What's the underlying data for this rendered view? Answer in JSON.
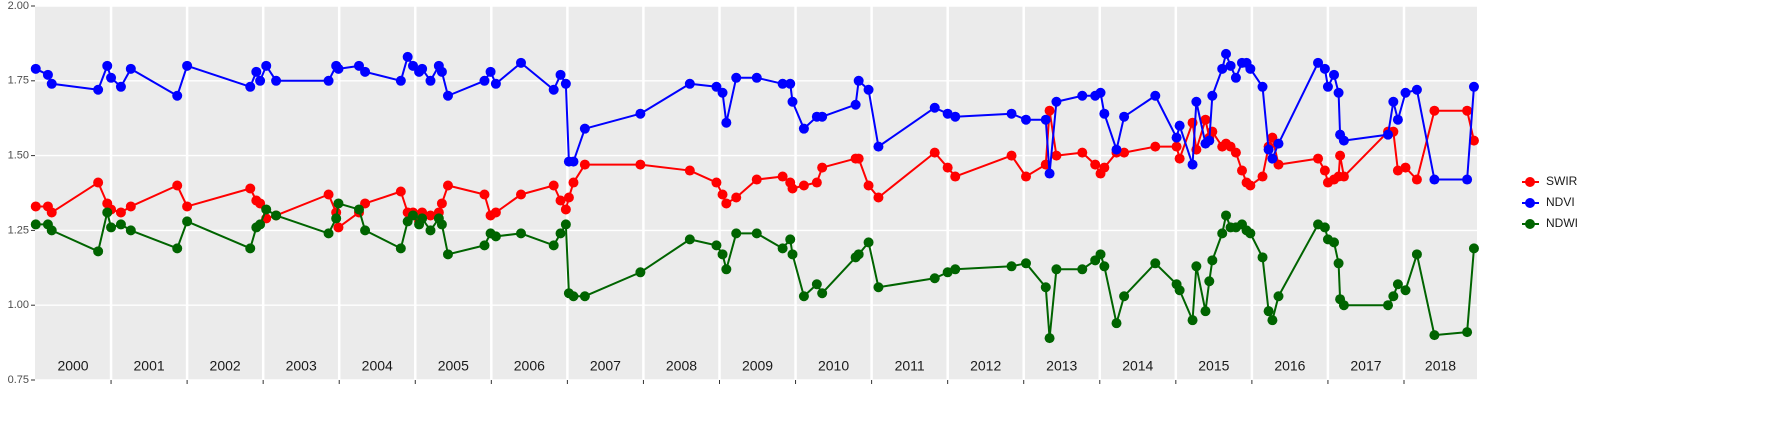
{
  "chart_data": {
    "type": "line",
    "x": [
      2000.01,
      2000.17,
      2000.22,
      2000.83,
      2000.95,
      2001.0,
      2001.13,
      2001.26,
      2001.87,
      2002.0,
      2002.83,
      2002.91,
      2002.96,
      2003.04,
      2003.17,
      2003.86,
      2003.96,
      2003.99,
      2004.26,
      2004.34,
      2004.81,
      2004.9,
      2004.97,
      2005.05,
      2005.09,
      2005.2,
      2005.31,
      2005.35,
      2005.43,
      2005.91,
      2005.99,
      2006.06,
      2006.39,
      2006.82,
      2006.91,
      2006.98,
      2007.02,
      2007.08,
      2007.23,
      2007.96,
      2008.61,
      2008.96,
      2009.04,
      2009.09,
      2009.22,
      2009.49,
      2009.83,
      2009.93,
      2009.96,
      2010.11,
      2010.28,
      2010.35,
      2010.79,
      2010.83,
      2010.96,
      2011.09,
      2011.83,
      2012.0,
      2012.1,
      2012.84,
      2013.03,
      2013.29,
      2013.34,
      2013.43,
      2013.77,
      2013.94,
      2014.01,
      2014.06,
      2014.22,
      2014.32,
      2014.73,
      2015.01,
      2015.05,
      2015.22,
      2015.27,
      2015.39,
      2015.44,
      2015.48,
      2015.61,
      2015.66,
      2015.72,
      2015.79,
      2015.87,
      2015.93,
      2015.98,
      2016.14,
      2016.22,
      2016.27,
      2016.35,
      2016.87,
      2016.96,
      2017.0,
      2017.08,
      2017.14,
      2017.16,
      2017.21,
      2017.79,
      2017.86,
      2017.92,
      2018.02,
      2018.17,
      2018.4,
      2018.83,
      2018.92
    ],
    "series": [
      {
        "name": "SWIR",
        "color": "#ff0000",
        "values": [
          1.33,
          1.33,
          1.31,
          1.41,
          1.34,
          1.32,
          1.31,
          1.33,
          1.4,
          1.33,
          1.39,
          1.35,
          1.34,
          1.29,
          1.3,
          1.37,
          1.31,
          1.26,
          1.31,
          1.34,
          1.38,
          1.31,
          1.31,
          1.28,
          1.31,
          1.3,
          1.31,
          1.34,
          1.4,
          1.37,
          1.3,
          1.31,
          1.37,
          1.4,
          1.35,
          1.32,
          1.36,
          1.41,
          1.47,
          1.47,
          1.45,
          1.41,
          1.37,
          1.34,
          1.36,
          1.42,
          1.43,
          1.41,
          1.39,
          1.4,
          1.41,
          1.46,
          1.49,
          1.49,
          1.4,
          1.36,
          1.51,
          1.46,
          1.43,
          1.5,
          1.43,
          1.47,
          1.65,
          1.5,
          1.51,
          1.47,
          1.44,
          1.46,
          1.51,
          1.51,
          1.53,
          1.53,
          1.49,
          1.61,
          1.52,
          1.62,
          1.56,
          1.58,
          1.53,
          1.54,
          1.53,
          1.51,
          1.45,
          1.41,
          1.4,
          1.43,
          1.53,
          1.56,
          1.47,
          1.49,
          1.45,
          1.41,
          1.42,
          1.43,
          1.5,
          1.43,
          1.58,
          1.58,
          1.45,
          1.46,
          1.42,
          1.65,
          1.65,
          1.55
        ]
      },
      {
        "name": "NDVI",
        "color": "#0000ff",
        "values": [
          1.79,
          1.77,
          1.74,
          1.72,
          1.8,
          1.76,
          1.73,
          1.79,
          1.7,
          1.8,
          1.73,
          1.78,
          1.75,
          1.8,
          1.75,
          1.75,
          1.8,
          1.79,
          1.8,
          1.78,
          1.75,
          1.83,
          1.8,
          1.78,
          1.79,
          1.75,
          1.8,
          1.78,
          1.7,
          1.75,
          1.78,
          1.74,
          1.81,
          1.72,
          1.77,
          1.74,
          1.48,
          1.48,
          1.59,
          1.64,
          1.74,
          1.73,
          1.71,
          1.61,
          1.76,
          1.76,
          1.74,
          1.74,
          1.68,
          1.59,
          1.63,
          1.63,
          1.67,
          1.75,
          1.72,
          1.53,
          1.66,
          1.64,
          1.63,
          1.64,
          1.62,
          1.62,
          1.44,
          1.68,
          1.7,
          1.7,
          1.71,
          1.64,
          1.52,
          1.63,
          1.7,
          1.56,
          1.6,
          1.47,
          1.68,
          1.54,
          1.55,
          1.7,
          1.79,
          1.84,
          1.8,
          1.76,
          1.81,
          1.81,
          1.79,
          1.73,
          1.52,
          1.49,
          1.54,
          1.81,
          1.79,
          1.73,
          1.77,
          1.71,
          1.57,
          1.55,
          1.57,
          1.68,
          1.62,
          1.71,
          1.72,
          1.42,
          1.42,
          1.73
        ]
      },
      {
        "name": "NDWI",
        "color": "#006400",
        "values": [
          1.27,
          1.27,
          1.25,
          1.18,
          1.31,
          1.26,
          1.27,
          1.25,
          1.19,
          1.28,
          1.19,
          1.26,
          1.27,
          1.32,
          1.3,
          1.24,
          1.29,
          1.34,
          1.32,
          1.25,
          1.19,
          1.28,
          1.3,
          1.27,
          1.29,
          1.25,
          1.29,
          1.27,
          1.17,
          1.2,
          1.24,
          1.23,
          1.24,
          1.2,
          1.24,
          1.27,
          1.04,
          1.03,
          1.03,
          1.11,
          1.22,
          1.2,
          1.17,
          1.12,
          1.24,
          1.24,
          1.19,
          1.22,
          1.17,
          1.03,
          1.07,
          1.04,
          1.16,
          1.17,
          1.21,
          1.06,
          1.09,
          1.11,
          1.12,
          1.13,
          1.14,
          1.06,
          0.89,
          1.12,
          1.12,
          1.15,
          1.17,
          1.13,
          0.94,
          1.03,
          1.14,
          1.07,
          1.05,
          0.95,
          1.13,
          0.98,
          1.08,
          1.15,
          1.24,
          1.3,
          1.26,
          1.26,
          1.27,
          1.25,
          1.24,
          1.16,
          0.98,
          0.95,
          1.03,
          1.27,
          1.26,
          1.22,
          1.21,
          1.14,
          1.02,
          1.0,
          1.0,
          1.03,
          1.07,
          1.05,
          1.17,
          0.9,
          0.91,
          1.19
        ]
      }
    ],
    "xlim": [
      2000,
      2018.96
    ],
    "ylim": [
      0.75,
      2
    ],
    "yticks": [
      {
        "value": 0.75,
        "label": "0.75"
      },
      {
        "value": 1,
        "label": "1.00"
      },
      {
        "value": 1.25,
        "label": "1.25"
      },
      {
        "value": 1.5,
        "label": "1.50"
      },
      {
        "value": 1.75,
        "label": "1.75"
      },
      {
        "value": 2,
        "label": "2.00"
      }
    ],
    "year_bands": [
      2000,
      2001,
      2002,
      2003,
      2004,
      2005,
      2006,
      2007,
      2008,
      2009,
      2010,
      2011,
      2012,
      2013,
      2014,
      2015,
      2016,
      2017,
      2018
    ],
    "grid": true,
    "legend": "right"
  }
}
